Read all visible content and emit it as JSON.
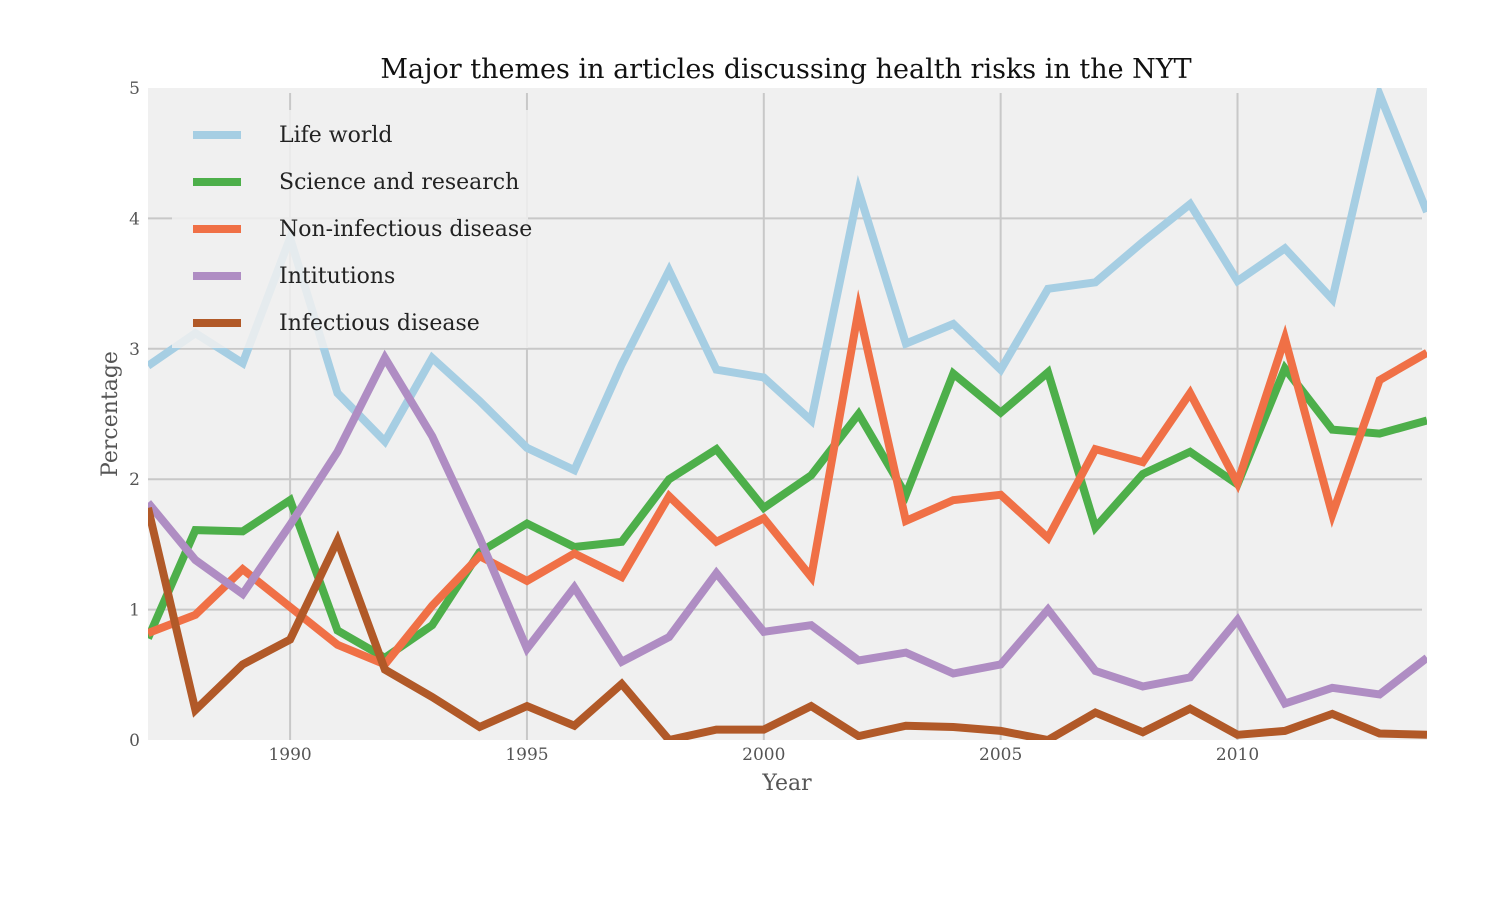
{
  "chart_data": {
    "type": "line",
    "title": "Major themes in articles discussing health risks in the NYT",
    "xlabel": "Year",
    "ylabel": "Percentage",
    "xlim": [
      1987,
      2014
    ],
    "ylim": [
      0,
      5
    ],
    "xticks": [
      "1990",
      "1995",
      "2000",
      "2005",
      "2010"
    ],
    "yticks": [
      "0",
      "1",
      "2",
      "3",
      "4",
      "5"
    ],
    "grid": true,
    "legend_position": "top-left",
    "x": [
      1987,
      1988,
      1989,
      1990,
      1991,
      1992,
      1993,
      1994,
      1995,
      1996,
      1997,
      1998,
      1999,
      2000,
      2001,
      2002,
      2003,
      2004,
      2005,
      2006,
      2007,
      2008,
      2009,
      2010,
      2011,
      2012,
      2013,
      2014
    ],
    "series": [
      {
        "name": "Life world",
        "color": "#a6cee3",
        "values": [
          2.87,
          3.12,
          2.89,
          3.85,
          2.66,
          2.29,
          2.93,
          2.6,
          2.24,
          2.07,
          2.88,
          3.6,
          2.84,
          2.78,
          2.45,
          4.21,
          3.04,
          3.19,
          2.84,
          3.46,
          3.51,
          3.82,
          4.11,
          3.52,
          3.77,
          3.38,
          4.95,
          4.05
        ]
      },
      {
        "name": "Science and research",
        "color": "#4daf4a",
        "values": [
          0.78,
          1.61,
          1.6,
          1.84,
          0.84,
          0.63,
          0.88,
          1.44,
          1.66,
          1.48,
          1.52,
          2.0,
          2.23,
          1.78,
          2.03,
          2.5,
          1.88,
          2.81,
          2.51,
          2.82,
          1.63,
          2.04,
          2.21,
          1.96,
          2.85,
          2.38,
          2.35,
          2.45
        ]
      },
      {
        "name": "Non-infectious disease",
        "color": "#f07046",
        "values": [
          0.82,
          0.96,
          1.31,
          1.02,
          0.73,
          0.58,
          1.03,
          1.41,
          1.22,
          1.43,
          1.25,
          1.87,
          1.52,
          1.7,
          1.25,
          3.3,
          1.68,
          1.84,
          1.88,
          1.55,
          2.23,
          2.13,
          2.66,
          1.97,
          3.08,
          1.73,
          2.76,
          2.97
        ]
      },
      {
        "name": "Intitutions",
        "color": "#af8dc3",
        "values": [
          1.82,
          1.38,
          1.12,
          1.65,
          2.21,
          2.93,
          2.33,
          1.55,
          0.7,
          1.17,
          0.6,
          0.79,
          1.28,
          0.83,
          0.88,
          0.61,
          0.67,
          0.51,
          0.58,
          1.0,
          0.53,
          0.41,
          0.48,
          0.92,
          0.28,
          0.4,
          0.35,
          0.63
        ]
      },
      {
        "name": "Infectious disease",
        "color": "#b15928",
        "values": [
          1.78,
          0.23,
          0.58,
          0.77,
          1.53,
          0.54,
          0.33,
          0.1,
          0.26,
          0.11,
          0.43,
          0.0,
          0.08,
          0.08,
          0.26,
          0.03,
          0.11,
          0.1,
          0.07,
          0.0,
          0.21,
          0.06,
          0.24,
          0.04,
          0.07,
          0.2,
          0.05,
          0.04
        ]
      }
    ]
  }
}
